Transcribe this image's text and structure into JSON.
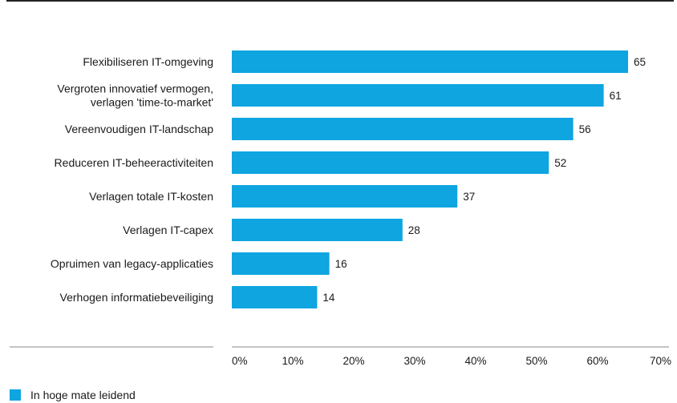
{
  "chart_data": {
    "type": "bar",
    "orientation": "horizontal",
    "categories": [
      [
        "Flexibiliseren IT-omgeving"
      ],
      [
        "Vergroten innovatief vermogen,",
        "verlagen 'time-to-market'"
      ],
      [
        "Vereenvoudigen IT-landschap"
      ],
      [
        "Reduceren IT-beheeractiviteiten"
      ],
      [
        "Verlagen totale IT-kosten"
      ],
      [
        "Verlagen IT-capex"
      ],
      [
        "Opruimen van legacy-applicaties"
      ],
      [
        "Verhogen informatiebeveiliging"
      ]
    ],
    "series": [
      {
        "name": "In hoge mate leidend",
        "values": [
          65,
          61,
          56,
          52,
          37,
          28,
          16,
          14
        ]
      }
    ],
    "xlim": [
      0,
      70
    ],
    "xticks": [
      "0%",
      "10%",
      "20%",
      "30%",
      "40%",
      "50%",
      "60%",
      "70%"
    ],
    "grid": false,
    "legend_position": "bottom-left",
    "title": "",
    "xlabel": "",
    "ylabel": ""
  },
  "colors": {
    "bar": "#0ea5e0",
    "axis": "#888888",
    "top_rule": "#222222"
  }
}
